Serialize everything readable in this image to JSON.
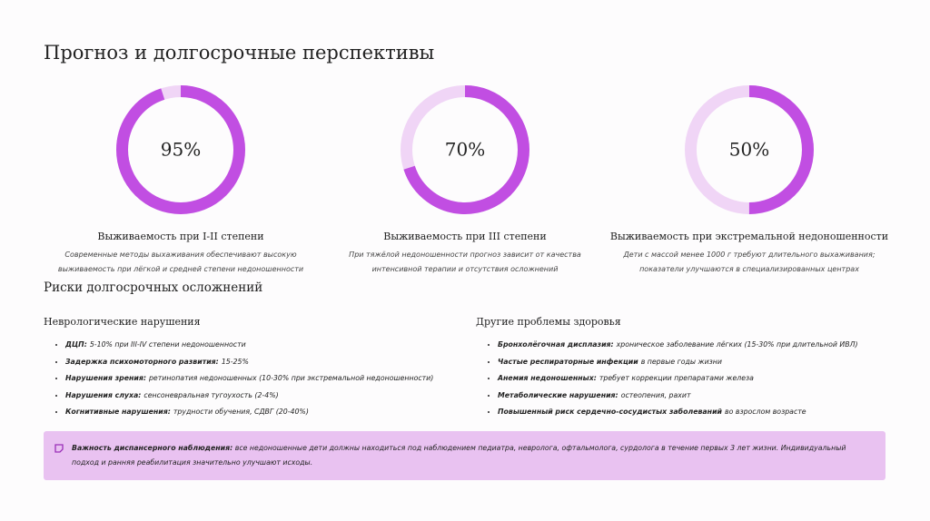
{
  "header": {
    "title": "Прогноз и долгосрочные перспективы"
  },
  "gauges": [
    {
      "value": 95,
      "value_label": "95%",
      "title": "Выживаемость при I-II степени",
      "description": [
        "Современные методы выхаживания обеспечивают высокую",
        "выживаемость при лёгкой и средней степени недоношенности"
      ]
    },
    {
      "value": 70,
      "value_label": "70%",
      "title": "Выживаемость при III степени",
      "description": [
        "При тяжёлой недоношенности прогноз зависит от качества",
        "интенсивной терапии и отсутствия осложнений"
      ]
    },
    {
      "value": 50,
      "value_label": "50%",
      "title": "Выживаемость при экстремальной недоношенности",
      "description": [
        "Дети с массой менее 1000 г требуют длительного выхаживания;",
        "показатели улучшаются в специализированных центрах"
      ]
    }
  ],
  "risks": {
    "title": "Риски долгосрочных осложнений",
    "groups": [
      {
        "title": "Неврологические нарушения",
        "items": [
          {
            "term": "ДЦП:",
            "text": "5-10% при III-IV степени недоношенности"
          },
          {
            "term": "Задержка психомоторного развития:",
            "text": "15-25%"
          },
          {
            "term": "Нарушения зрения:",
            "text": "ретинопатия недоношенных (10-30% при экстремальной недоношенности)"
          },
          {
            "term": "Нарушения слуха:",
            "text": "сенсоневральная тугоухость (2-4%)"
          },
          {
            "term": "Когнитивные нарушения:",
            "text": "трудности обучения, СДВГ (20-40%)"
          }
        ]
      },
      {
        "title": "Другие проблемы здоровья",
        "items": [
          {
            "term": "Бронхолёгочная дисплазия:",
            "text": "хроническое заболевание лёгких (15-30% при длительной ИВЛ)"
          },
          {
            "term": "Частые респираторные инфекции",
            "text": "в первые годы жизни"
          },
          {
            "term": "Анемия недоношенных:",
            "text": "требует коррекции препаратами железа"
          },
          {
            "term": "Метаболические нарушения:",
            "text": "остеопения, рахит"
          },
          {
            "term": "Повышенный риск сердечно-сосудистых заболеваний",
            "text": "во взрослом возрасте"
          }
        ]
      }
    ]
  },
  "note": {
    "term": "Важность диспансерного наблюдения:",
    "text": "все недоношенные дети должны находиться под наблюдением педиатра, невролога, офтальмолога, сурдолога в течение первых 3 лет жизни. Индивидуальный подход и ранняя реабилитация значительно улучшают исходы."
  }
}
